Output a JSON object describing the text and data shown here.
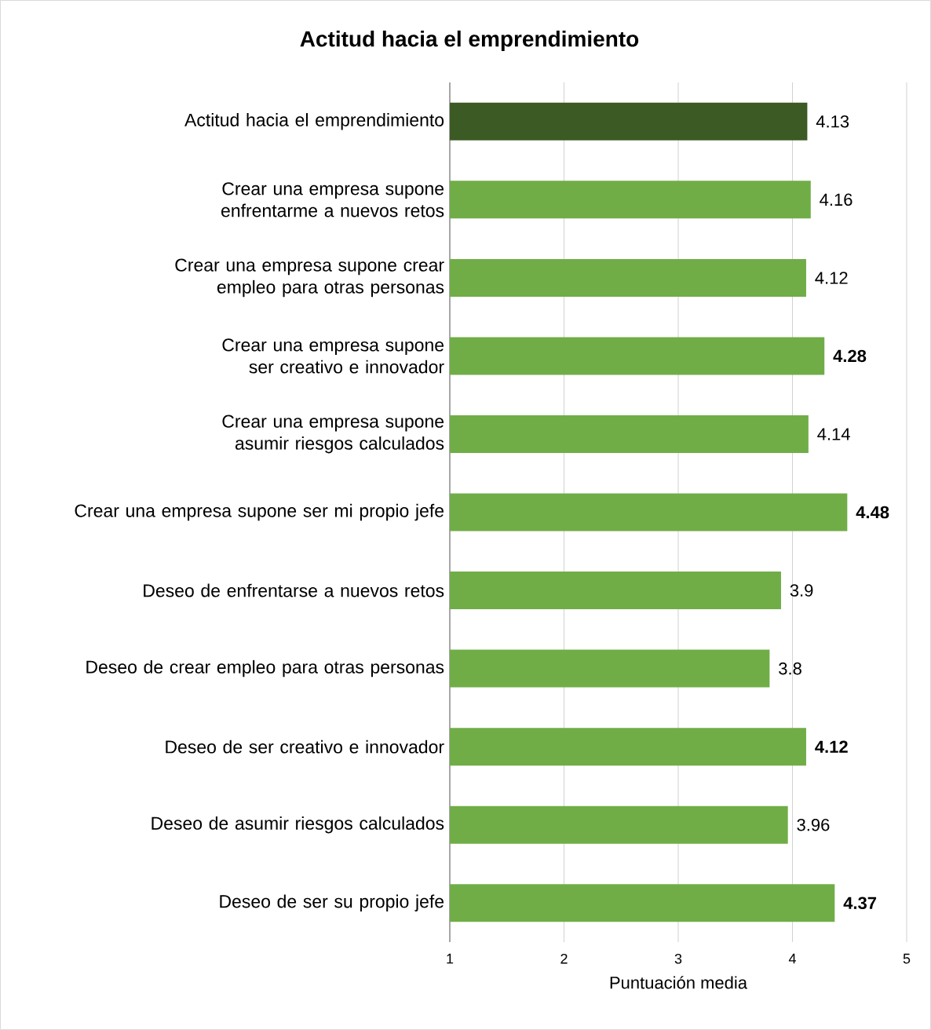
{
  "chart_data": {
    "type": "bar",
    "orientation": "horizontal",
    "title": "Actitud hacia el emprendimiento",
    "xlabel": "Puntuación media",
    "categories": [
      "Actitud hacia el emprendimiento",
      "Crear una empresa supone enfrentarme a nuevos retos",
      "Crear una empresa supone crear empleo para otras personas",
      "Crear una empresa supone ser creativo e innovador",
      "Crear una empresa supone asumir riesgos calculados",
      "Crear una empresa supone ser mi propio jefe",
      "Deseo de enfrentarse a nuevos retos",
      "Deseo de crear empleo para otras personas",
      "Deseo de ser creativo e innovador",
      "Deseo de asumir riesgos calculados",
      "Deseo de ser su propio jefe"
    ],
    "values": [
      4.13,
      4.16,
      4.12,
      4.28,
      4.14,
      4.48,
      3.9,
      3.8,
      4.12,
      3.96,
      4.37
    ],
    "value_labels": [
      "4.13",
      "4.16",
      "4.12",
      "**4.28**",
      "4.14",
      "**4.48**",
      "3.9",
      "3.8",
      "**4.12**",
      "3.96",
      "**4.37**"
    ],
    "colors": [
      "#3b5a24",
      "#70ad47",
      "#70ad47",
      "#70ad47",
      "#70ad47",
      "#70ad47",
      "#70ad47",
      "#70ad47",
      "#70ad47",
      "#70ad47",
      "#70ad47"
    ],
    "xlim": [
      1,
      5
    ],
    "xticks": [
      1,
      2,
      3,
      4,
      5
    ],
    "grid": "x"
  }
}
